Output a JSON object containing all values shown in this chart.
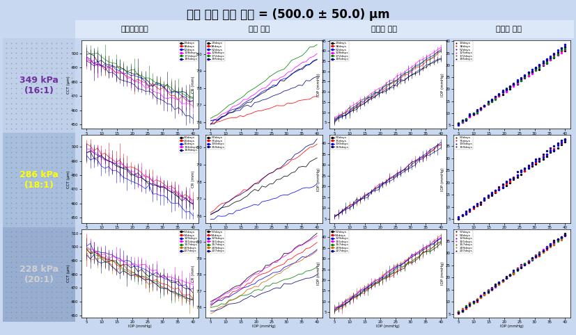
{
  "title": "표적 중심 각막 두께 = (500.0 ± 50.0) μm",
  "col_headers": [
    "중심각막두께",
    "각막 곡률",
    "공압식 안압",
    "골드만 안압"
  ],
  "row_labels": [
    "349 kPa\n(16:1)",
    "286 kPa\n(18:1)",
    "228 kPa\n(20:1)"
  ],
  "row_label_colors": [
    "#7030a0",
    "#ffff00",
    "#d0d0d0"
  ],
  "row_bg_colors_dot": [
    "#c0d0e8",
    "#a8bedd",
    "#98aed0"
  ],
  "row_bg_colors_panel": [
    "#dce8f8",
    "#c8d8f0",
    "#b8cce4"
  ],
  "header_bg": "#dce8f8",
  "fig_bg": "#c8d8f0",
  "legend_349_c0": [
    "23days",
    "38days",
    "52days",
    "128days",
    "172days",
    "195days"
  ],
  "legend_349_c1": [
    "23days",
    "38days",
    "52days",
    "128days",
    "172days",
    "195days"
  ],
  "legend_349_c2": [
    "23days",
    "38days",
    "52days",
    "128days",
    "172days",
    "195days"
  ],
  "legend_349_c3": [
    "13days",
    "38days",
    "52days",
    "125days",
    "172days",
    "195days"
  ],
  "legend_286_c0": [
    "50days",
    "25days",
    "35days",
    "156days",
    "159days"
  ],
  "legend_286_c1": [
    "50days",
    "75days",
    "130days",
    "159days"
  ],
  "legend_286_c2": [
    "50days",
    "75days",
    "130days",
    "159days"
  ],
  "legend_286_c3": [
    "50days",
    "75days",
    "130days",
    "159days"
  ],
  "legend_228_c0": [
    "57days",
    "94days",
    "129days",
    "101days",
    "157days",
    "209days",
    "227days"
  ],
  "legend_228_c1": [
    "57days",
    "94days",
    "129days",
    "101days",
    "157days",
    "209days",
    "227days"
  ],
  "legend_228_c2": [
    "57days",
    "94days",
    "129days",
    "101days",
    "157days",
    "209days",
    "227days"
  ],
  "legend_228_c3": [
    "57days",
    "94days",
    "129days",
    "101days",
    "157days",
    "209days",
    "227days"
  ],
  "colors_6": [
    "#000000",
    "#ff0000",
    "#0000ff",
    "#ff00ff",
    "#008000",
    "#000080"
  ],
  "colors_5": [
    "#000000",
    "#ff0000",
    "#0000ff",
    "#ff00ff",
    "#000080"
  ],
  "colors_4": [
    "#000000",
    "#ff0000",
    "#0000ff",
    "#000080"
  ],
  "colors_7": [
    "#000000",
    "#ff0000",
    "#0000ff",
    "#ff00ff",
    "#008000",
    "#cc6600",
    "#000080"
  ]
}
